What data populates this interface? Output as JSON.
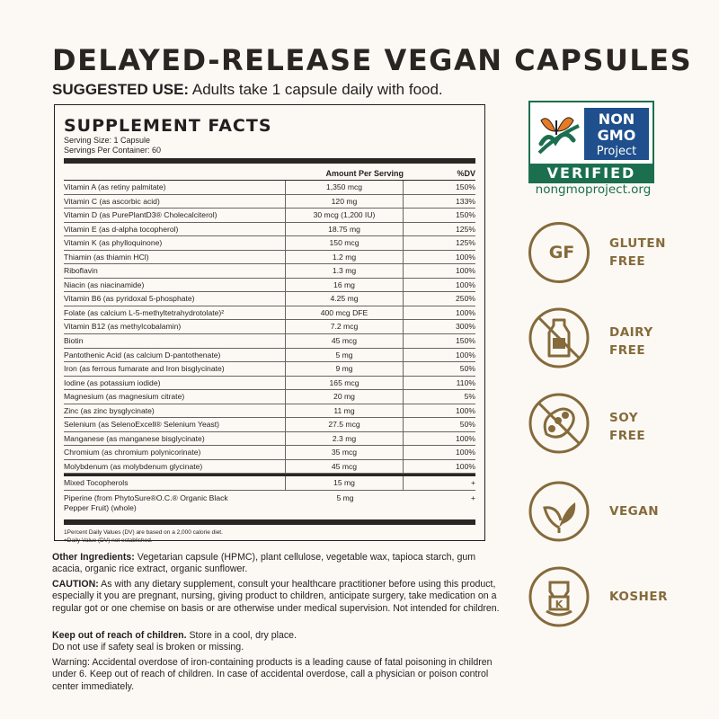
{
  "headline": "DELAYED-RELEASE VEGAN CAPSULES",
  "suggested_use": {
    "label": "SUGGESTED USE:",
    "text": " Adults take 1 capsule daily with food."
  },
  "supplement_facts": {
    "title": "SUPPLEMENT FACTS",
    "serving_size": "Serving Size: 1 Capsule",
    "servings_per_container": "Servings Per Container: 60",
    "header_amount": "Amount Per Serving",
    "header_dv": "%DV",
    "rows": [
      {
        "name": "Vitamin A (as retiny palmitate)",
        "amount": "1,350 mcg",
        "dv": "150%"
      },
      {
        "name": "Vitamin C (as ascorbic acid)",
        "amount": "120 mg",
        "dv": "133%"
      },
      {
        "name": "Vitamin D (as PurePlantD3® Cholecalciterol)",
        "amount": "30 mcg (1,200 IU)",
        "dv": "150%"
      },
      {
        "name": "Vitamin E (as d-alpha tocopherol)",
        "amount": "18.75 mg",
        "dv": "125%"
      },
      {
        "name": "Vitamin K (as phylloquinone)",
        "amount": "150 mcg",
        "dv": "125%"
      },
      {
        "name": "Thiamin (as thiamin HCl)",
        "amount": "1.2 mg",
        "dv": "100%"
      },
      {
        "name": "Riboflavin",
        "amount": "1.3 mg",
        "dv": "100%"
      },
      {
        "name": "Niacin (as niacinamide)",
        "amount": "16 mg",
        "dv": "100%"
      },
      {
        "name": "Vitamin B6 (as pyridoxal 5-phosphate)",
        "amount": "4.25 mg",
        "dv": "250%"
      },
      {
        "name": "Folate (as calcium L-5-methyltetrahydrotolate)²",
        "amount": "400 mcg DFE",
        "dv": "100%"
      },
      {
        "name": "Vitamin B12 (as methylcobalamin)",
        "amount": "7.2 mcg",
        "dv": "300%"
      },
      {
        "name": "Biotin",
        "amount": "45 mcg",
        "dv": "150%"
      },
      {
        "name": "Pantothenic Acid (as calcium D-pantothenate)",
        "amount": "5 mg",
        "dv": "100%"
      },
      {
        "name": "Iron (as ferrous fumarate and Iron bisglycinate)",
        "amount": "9 mg",
        "dv": "50%"
      },
      {
        "name": "Iodine (as potassium iodide)",
        "amount": "165 mcg",
        "dv": "110%"
      },
      {
        "name": "Magnesium (as magnesium citrate)",
        "amount": "20 mg",
        "dv": "5%"
      },
      {
        "name": "Zinc (as zinc bysglycinate)",
        "amount": "11 mg",
        "dv": "100%"
      },
      {
        "name": "Selenium (as SelenoExcell® Selenium Yeast)",
        "amount": "27.5 mcg",
        "dv": "50%"
      },
      {
        "name": "Manganese (as manganese bisglycinate)",
        "amount": "2.3 mg",
        "dv": "100%"
      },
      {
        "name": "Chromium (as chromium polynicorinate)",
        "amount": "35 mcg",
        "dv": "100%"
      },
      {
        "name": "Molybdenum (as molybdenum glycinate)",
        "amount": "45 mcg",
        "dv": "100%"
      }
    ],
    "other_rows": [
      {
        "name": "Mixed Tocopherols",
        "amount": "15 mg",
        "dv": "+"
      },
      {
        "name": "Piperine (from PhytoSure®O.C.® Organic Black Pepper Fruit) (whole)",
        "amount": "5 mg",
        "dv": "+"
      }
    ],
    "footnote_1": "1Percent Daily Values (DV) are based on a 2,000 calorie diet.",
    "footnote_2": "+Daily Value (DV) not established."
  },
  "other_ingredients": {
    "label": "Other Ingredients:",
    "text": " Vegetarian capsule (HPMC), plant cellulose, vegetable wax, tapioca starch, gum acacia, organic rice extract, organic sunflower."
  },
  "caution": {
    "label": "CAUTION:",
    "text": " As with any dietary supplement, consult your healthcare practitioner before using this product, especially it you are pregnant, nursing, giving product to children, anticipate surgery, take medication on a regular got or one chemise on basis or are otherwise under medical supervision. Not intended for children."
  },
  "keep_out": {
    "label": "Keep out of reach of children.",
    "text": " Store in a cool, dry place.",
    "line2": "Do not use if safety seal is broken or missing."
  },
  "warning": {
    "text": "Warning: Accidental overdose of iron-containing products is a leading cause of fatal poisoning in children under 6. Keep out of reach of children. In case of accidental overdose, call a physician or poison control center immediately."
  },
  "non_gmo": {
    "line1": "NON",
    "line2": "GMO",
    "line3": "Project",
    "verified": "VERIFIED",
    "url": "nongmoproject.org",
    "green": "#1b6f4f",
    "blue": "#1f4f8c",
    "orange": "#e57b23"
  },
  "badges": {
    "color": "#856a3b",
    "gluten": {
      "icon_text": "GF",
      "line1": "GLUTEN",
      "line2": "FREE",
      "icon": "gluten-free-icon"
    },
    "dairy": {
      "line1": "DAIRY",
      "line2": "FREE",
      "icon": "milk-bottle-crossed-icon"
    },
    "soy": {
      "line1": "SOY",
      "line2": "FREE",
      "icon": "soybean-crossed-icon"
    },
    "vegan": {
      "line1": "VEGAN",
      "icon": "leaves-icon"
    },
    "kosher": {
      "line1": "KOSHER",
      "icon": "kosher-k-icon"
    }
  }
}
